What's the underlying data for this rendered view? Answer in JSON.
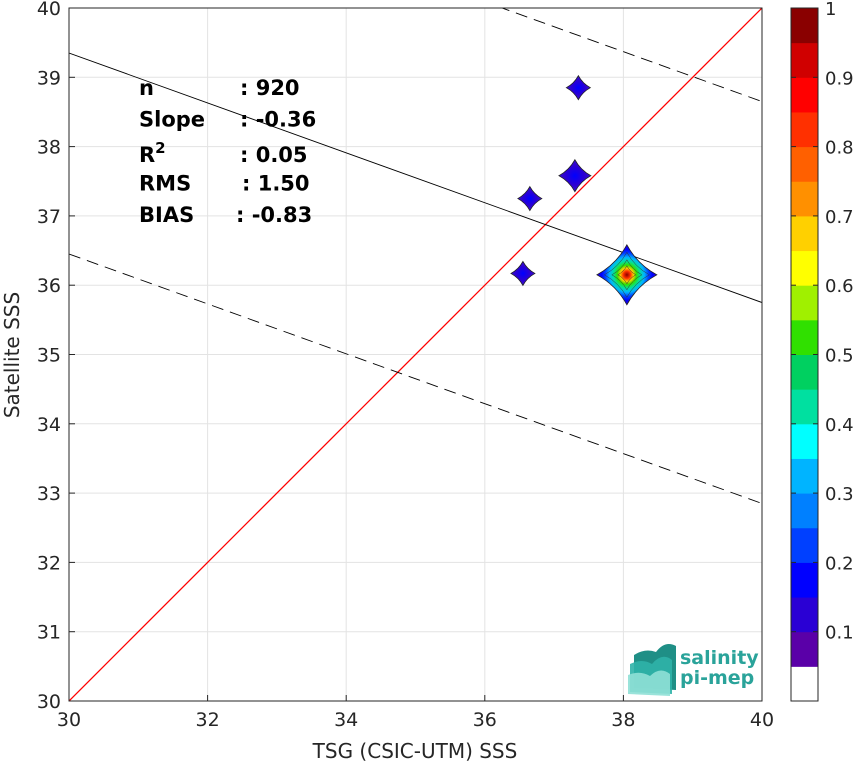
{
  "chart_data": {
    "type": "heatmap",
    "xlabel": "TSG (CSIC-UTM) SSS",
    "ylabel": "Satellite SSS",
    "xlim": [
      30,
      40
    ],
    "ylim": [
      30,
      40
    ],
    "xticks": [
      "30",
      "32",
      "34",
      "36",
      "38",
      "40"
    ],
    "yticks": [
      "30",
      "31",
      "32",
      "33",
      "34",
      "35",
      "36",
      "37",
      "38",
      "39",
      "40"
    ],
    "grid": true,
    "identity_line": {
      "from": [
        30,
        30
      ],
      "to": [
        40,
        40
      ],
      "color": "#ff0000"
    },
    "regression": {
      "slope": -0.36,
      "intercept": 50.15,
      "band": 2.9
    },
    "density_clusters": [
      {
        "x": 38.05,
        "y": 36.15,
        "peak": 1.0
      },
      {
        "x": 37.3,
        "y": 37.58,
        "peak": 0.18
      },
      {
        "x": 37.35,
        "y": 38.85,
        "peak": 0.1
      },
      {
        "x": 36.65,
        "y": 37.25,
        "peak": 0.12
      },
      {
        "x": 36.55,
        "y": 36.17,
        "peak": 0.12
      }
    ],
    "stats": [
      {
        "label": "n",
        "value": ": 920"
      },
      {
        "label": "Slope",
        "value": ": -0.36"
      },
      {
        "label": "R",
        "sup": "2",
        "value": ": 0.05"
      },
      {
        "label": "RMS",
        "value": ": 1.50"
      },
      {
        "label": "BIAS",
        "value": ": -0.83"
      }
    ],
    "colorbar": {
      "range": [
        0,
        1
      ],
      "ticks": [
        "0.1",
        "0.2",
        "0.3",
        "0.4",
        "0.5",
        "0.6",
        "0.7",
        "0.8",
        "0.9",
        "1"
      ],
      "colors": [
        "#ffffff",
        "#5a00a8",
        "#2a00d4",
        "#0000ff",
        "#0040ff",
        "#0080ff",
        "#00b4ff",
        "#00ffff",
        "#00e0a0",
        "#00d060",
        "#30e000",
        "#a0f000",
        "#ffff00",
        "#ffd000",
        "#ff9000",
        "#ff6000",
        "#ff3000",
        "#ff0000",
        "#d00000",
        "#8a0000"
      ]
    },
    "logo": {
      "line1": "salinity",
      "line2": "pi-mep"
    }
  }
}
